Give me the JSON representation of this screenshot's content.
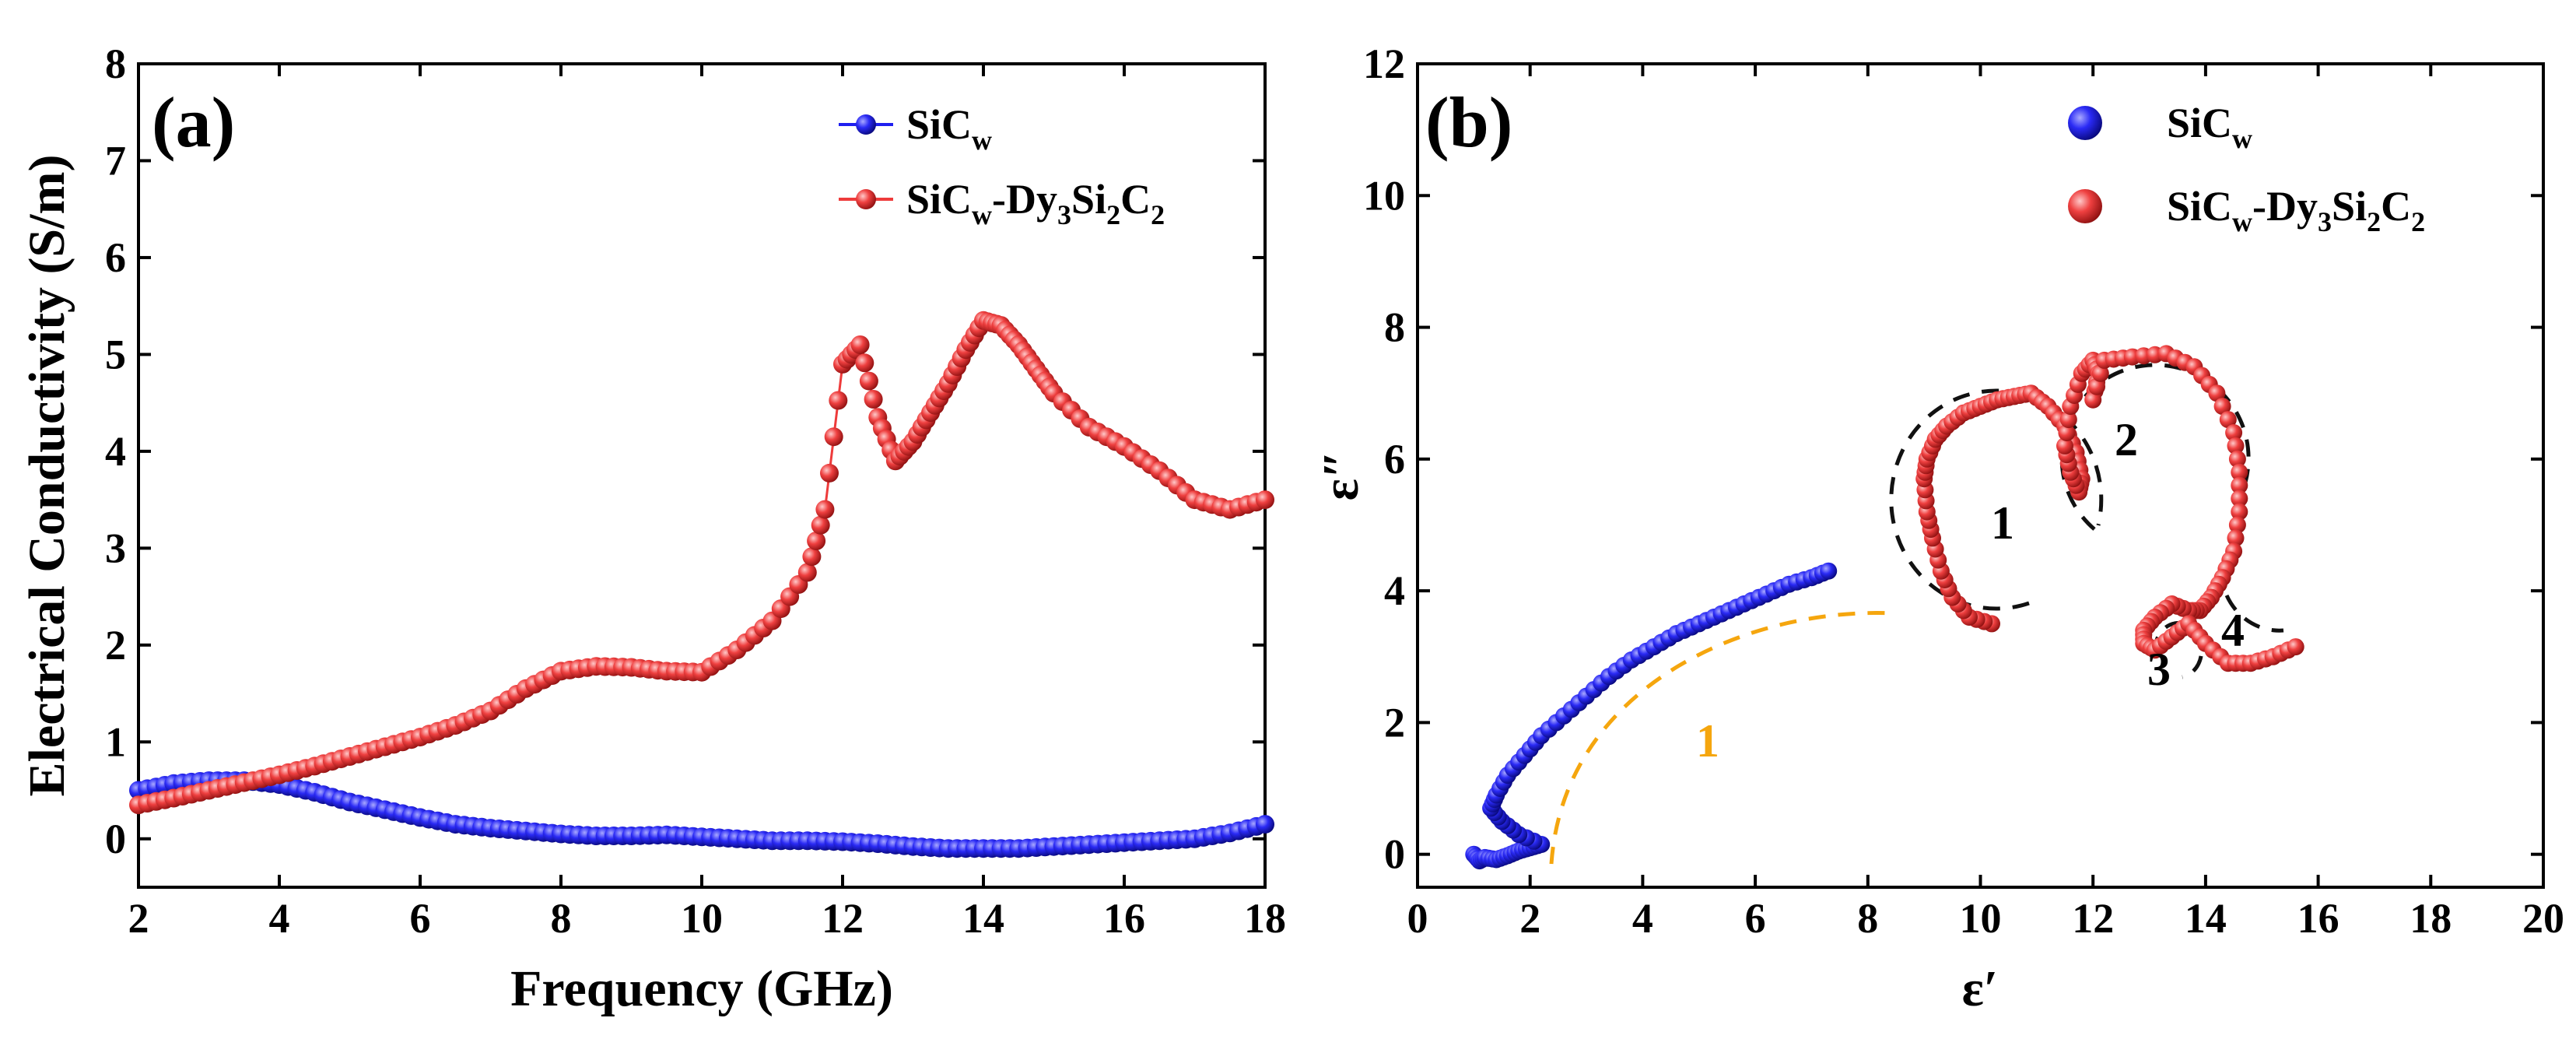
{
  "chart_data": [
    {
      "id": "panel-a",
      "type": "line",
      "panel_label": "(a)",
      "xlabel": "Frequency (GHz)",
      "ylabel": "Electrical Conductivity (S/m)",
      "xlim": [
        2,
        18
      ],
      "ylim": [
        -0.5,
        8
      ],
      "xticks": [
        2,
        4,
        6,
        8,
        10,
        12,
        14,
        16,
        18
      ],
      "yticks": [
        0,
        1,
        2,
        3,
        4,
        5,
        6,
        7,
        8
      ],
      "legend_position": "top-right",
      "series": [
        {
          "name": "SiCw",
          "legend_main": "SiC",
          "legend_sub": "w",
          "color": "#1f1ff0",
          "x": [
            2,
            2.5,
            3,
            3.5,
            4,
            4.5,
            5,
            5.5,
            6,
            6.5,
            7,
            7.5,
            8,
            8.5,
            9,
            9.5,
            10,
            10.5,
            11,
            11.5,
            12,
            12.5,
            13,
            13.5,
            14,
            14.5,
            15,
            15.5,
            16,
            16.5,
            17,
            17.5,
            18
          ],
          "y": [
            0.5,
            0.57,
            0.6,
            0.6,
            0.56,
            0.48,
            0.38,
            0.3,
            0.22,
            0.15,
            0.11,
            0.08,
            0.05,
            0.03,
            0.03,
            0.04,
            0.02,
            0.0,
            -0.02,
            -0.02,
            -0.03,
            -0.05,
            -0.08,
            -0.1,
            -0.1,
            -0.1,
            -0.08,
            -0.06,
            -0.04,
            -0.02,
            0.0,
            0.06,
            0.15
          ]
        },
        {
          "name": "SiCw-Dy3Si2C2",
          "legend_main": "SiC",
          "legend_sub": "w",
          "legend_rest": [
            "-Dy",
            "3",
            "Si",
            "2",
            "C",
            "2"
          ],
          "color": "#ee3b3b",
          "x": [
            2,
            2.5,
            3,
            3.5,
            4,
            4.5,
            5,
            5.5,
            6,
            6.5,
            7,
            7.5,
            8,
            8.5,
            9,
            9.5,
            10,
            10.5,
            11,
            11.5,
            11.75,
            12,
            12.25,
            12.5,
            12.75,
            13,
            13.25,
            13.5,
            13.75,
            14,
            14.25,
            14.5,
            14.75,
            15,
            15.5,
            16,
            16.5,
            17,
            17.5,
            18
          ],
          "y": [
            0.35,
            0.42,
            0.5,
            0.58,
            0.66,
            0.75,
            0.85,
            0.95,
            1.05,
            1.17,
            1.32,
            1.55,
            1.73,
            1.78,
            1.77,
            1.73,
            1.72,
            1.95,
            2.25,
            2.75,
            3.4,
            4.9,
            5.1,
            4.35,
            3.9,
            4.1,
            4.4,
            4.7,
            5.05,
            5.35,
            5.3,
            5.1,
            4.85,
            4.6,
            4.25,
            4.05,
            3.8,
            3.5,
            3.4,
            3.5
          ]
        }
      ]
    },
    {
      "id": "panel-b",
      "type": "scatter",
      "panel_label": "(b)",
      "xlabel": "ε′",
      "ylabel": "ε″",
      "xlim": [
        0,
        20
      ],
      "ylim": [
        -0.5,
        12
      ],
      "xticks": [
        0,
        2,
        4,
        6,
        8,
        10,
        12,
        14,
        16,
        18,
        20
      ],
      "yticks": [
        0,
        2,
        4,
        6,
        8,
        10,
        12
      ],
      "legend_position": "top-right",
      "region_labels": [
        "1",
        "2",
        "3",
        "4"
      ],
      "orange_label": "1",
      "series": [
        {
          "name": "SiCw",
          "legend_main": "SiC",
          "legend_sub": "w",
          "color": "#1f1ff0",
          "x": [
            1.0,
            1.1,
            1.2,
            1.4,
            1.6,
            1.8,
            2.0,
            2.2,
            1.8,
            1.5,
            1.3,
            1.4,
            1.6,
            1.9,
            2.2,
            2.6,
            3.0,
            3.4,
            3.8,
            4.2,
            4.6,
            5.0,
            5.4,
            5.8,
            6.2,
            6.6,
            7.0,
            7.3
          ],
          "y": [
            0.0,
            -0.1,
            -0.05,
            -0.08,
            -0.02,
            0.05,
            0.1,
            0.15,
            0.3,
            0.5,
            0.7,
            0.9,
            1.2,
            1.5,
            1.8,
            2.1,
            2.4,
            2.7,
            2.95,
            3.15,
            3.35,
            3.5,
            3.65,
            3.8,
            3.95,
            4.1,
            4.2,
            4.3
          ]
        },
        {
          "name": "SiCw-Dy3Si2C2",
          "legend_main": "SiC",
          "legend_sub": "w",
          "legend_rest": [
            "-Dy",
            "3",
            "Si",
            "2",
            "C",
            "2"
          ],
          "color": "#ee3b3b",
          "x": [
            10.2,
            9.8,
            9.5,
            9.3,
            9.15,
            9.05,
            9.0,
            9.05,
            9.2,
            9.4,
            9.7,
            10.0,
            10.3,
            10.6,
            10.9,
            11.2,
            11.5,
            11.7,
            11.8,
            11.75,
            11.6,
            11.5,
            11.6,
            11.8,
            12.0,
            12.1,
            12.0,
            12.2,
            12.7,
            13.3,
            13.8,
            14.2,
            14.5,
            14.6,
            14.6,
            14.5,
            14.3,
            14.1,
            13.9,
            13.7,
            13.4,
            13.1,
            12.9,
            12.9,
            13.1,
            13.4,
            13.7,
            14.0,
            14.4,
            14.8,
            15.2,
            15.6
          ],
          "y": [
            3.5,
            3.6,
            3.9,
            4.3,
            4.8,
            5.2,
            5.7,
            6.0,
            6.3,
            6.5,
            6.7,
            6.8,
            6.9,
            6.95,
            7.0,
            6.8,
            6.5,
            6.1,
            5.7,
            5.5,
            5.8,
            6.2,
            6.8,
            7.3,
            7.5,
            7.3,
            6.9,
            7.5,
            7.55,
            7.6,
            7.4,
            7.0,
            6.4,
            5.8,
            5.2,
            4.6,
            4.2,
            3.9,
            3.7,
            3.7,
            3.8,
            3.6,
            3.4,
            3.2,
            3.1,
            3.3,
            3.5,
            3.2,
            2.9,
            2.9,
            3.0,
            3.15
          ]
        }
      ]
    }
  ]
}
